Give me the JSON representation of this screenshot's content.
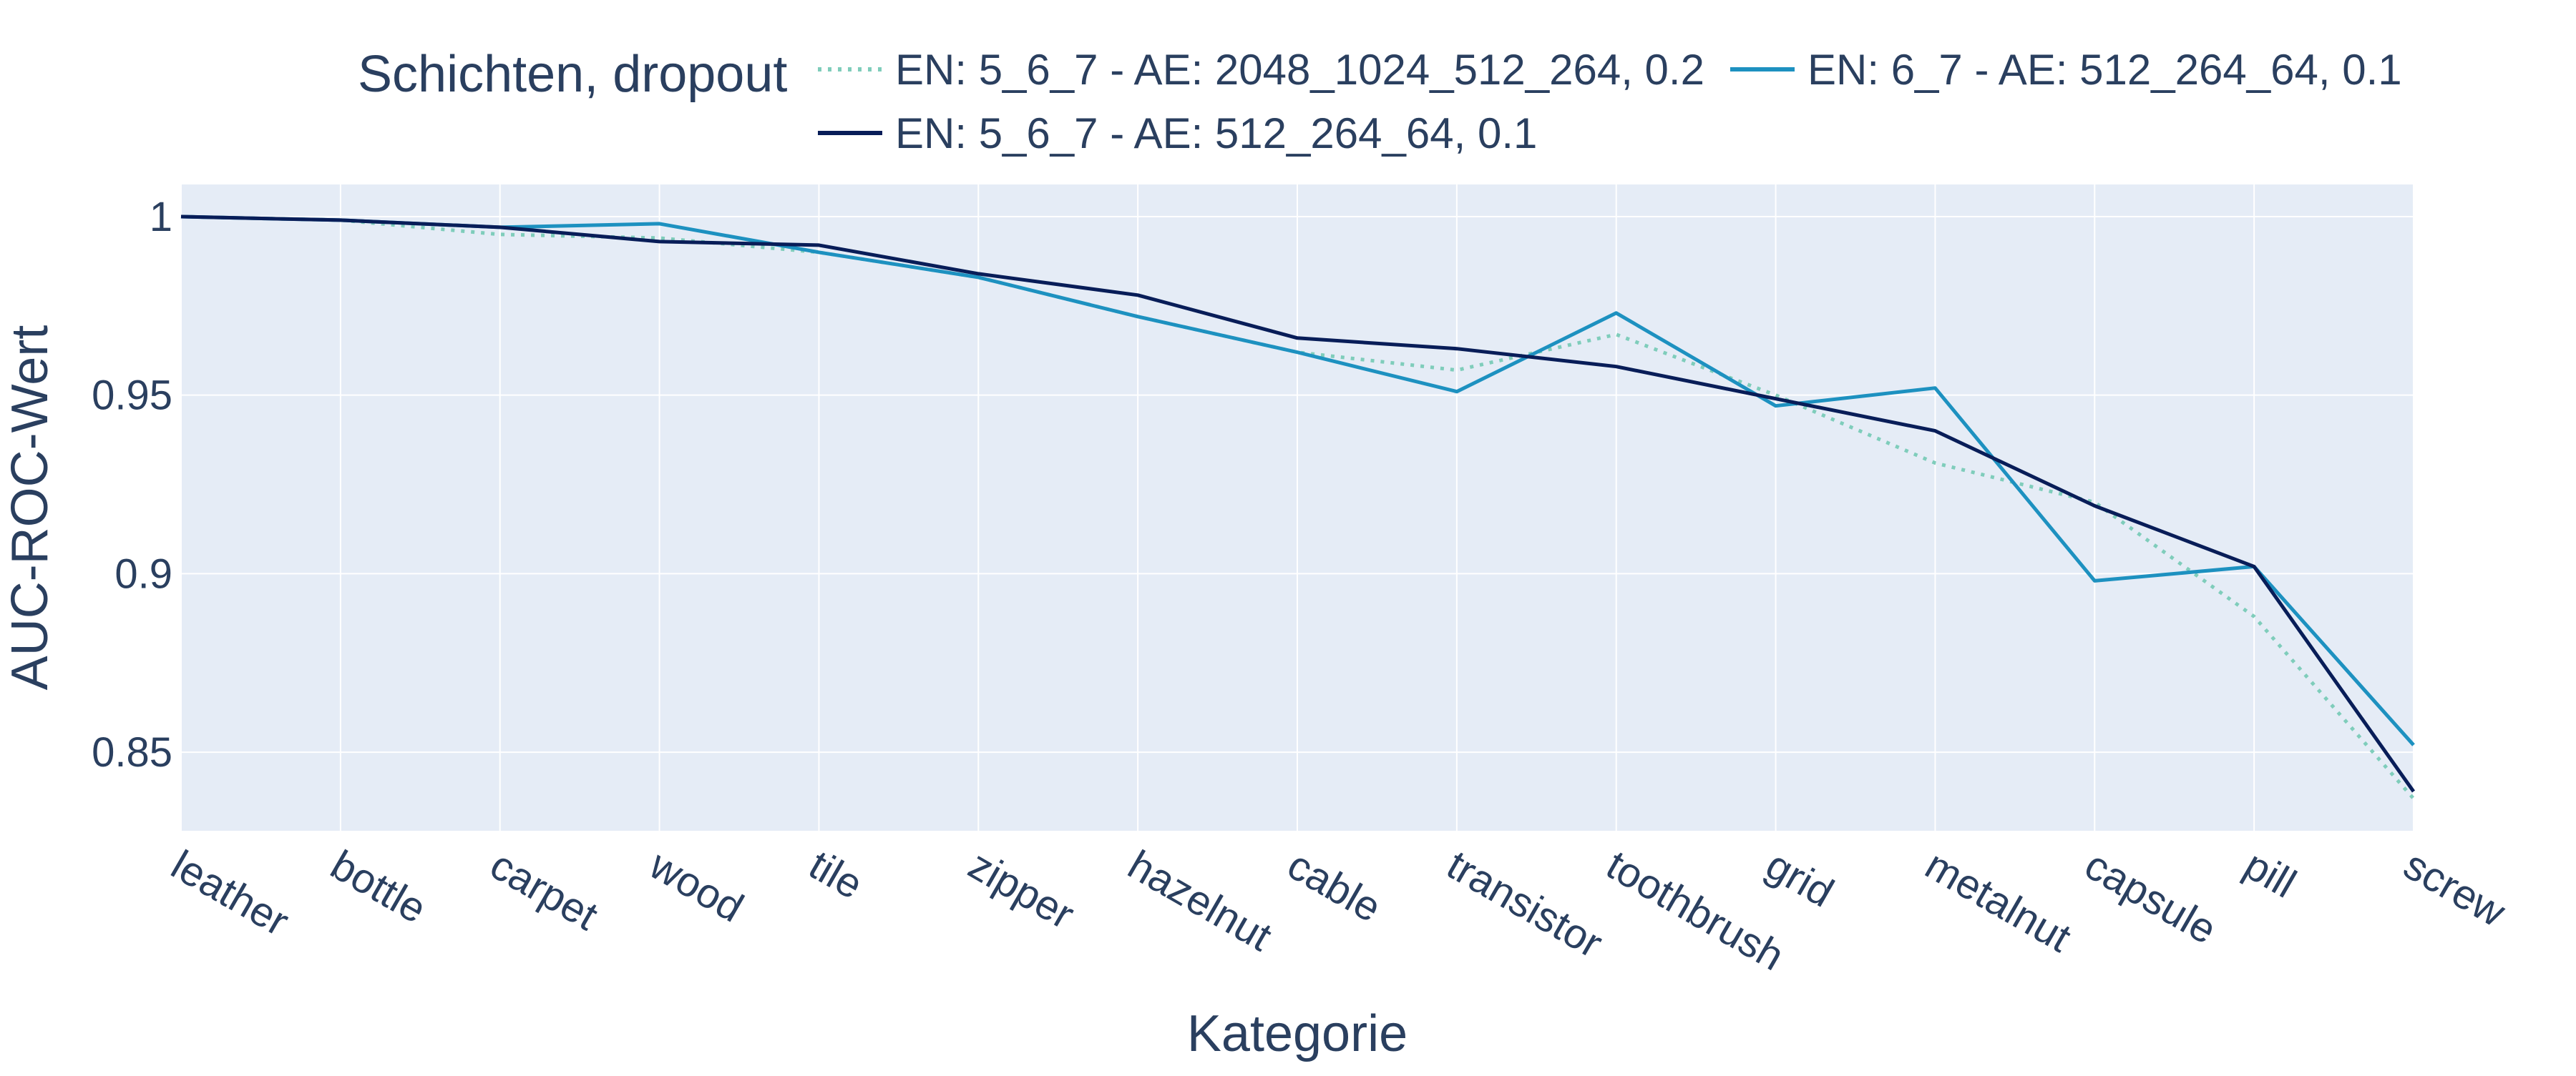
{
  "chart_data": {
    "type": "line",
    "title": "",
    "xlabel": "Kategorie",
    "ylabel": "AUC-ROC-Wert",
    "ylim": [
      0.828,
      1.009
    ],
    "yticks": [
      1,
      0.95,
      0.9,
      0.85
    ],
    "ytick_labels": [
      "1",
      "0.95",
      "0.9",
      "0.85"
    ],
    "grid": true,
    "plot_background": "#e5ecf6",
    "legend": {
      "title": "Schichten, dropout",
      "placement": "top"
    },
    "categories": [
      "leather",
      "bottle",
      "carpet",
      "wood",
      "tile",
      "zipper",
      "hazelnut",
      "cable",
      "transistor",
      "toothbrush",
      "grid",
      "metalnut",
      "capsule",
      "pill",
      "screw"
    ],
    "series": [
      {
        "name": "EN: 5_6_7 - AE: 2048_1024_512_264, 0.2",
        "color": "#7fcdbb",
        "dash": "dot",
        "values": [
          1.0,
          0.999,
          0.995,
          0.994,
          0.99,
          0.983,
          0.972,
          0.962,
          0.957,
          0.967,
          0.95,
          0.931,
          0.92,
          0.888,
          0.837
        ]
      },
      {
        "name": "EN: 6_7 - AE: 512_264_64, 0.1",
        "color": "#1d91c0",
        "dash": "solid",
        "values": [
          1.0,
          0.999,
          0.997,
          0.998,
          0.99,
          0.983,
          0.972,
          0.962,
          0.951,
          0.973,
          0.947,
          0.952,
          0.898,
          0.902,
          0.852
        ]
      },
      {
        "name": "EN: 5_6_7 - AE: 512_264_64, 0.1",
        "color": "#081d58",
        "dash": "solid",
        "values": [
          1.0,
          0.999,
          0.997,
          0.993,
          0.992,
          0.984,
          0.978,
          0.966,
          0.963,
          0.958,
          0.949,
          0.94,
          0.919,
          0.902,
          0.839
        ]
      }
    ]
  }
}
